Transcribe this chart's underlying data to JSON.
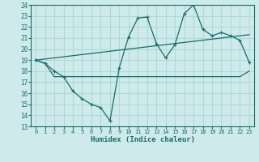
{
  "xlabel": "Humidex (Indice chaleur)",
  "xlim": [
    -0.5,
    23.5
  ],
  "ylim": [
    13,
    24
  ],
  "yticks": [
    13,
    14,
    15,
    16,
    17,
    18,
    19,
    20,
    21,
    22,
    23,
    24
  ],
  "xticks": [
    0,
    1,
    2,
    3,
    4,
    5,
    6,
    7,
    8,
    9,
    10,
    11,
    12,
    13,
    14,
    15,
    16,
    17,
    18,
    19,
    20,
    21,
    22,
    23
  ],
  "bg_color": "#ceeaea",
  "line_color": "#1a6b6b",
  "grid_color": "#b0d8d8",
  "line1_x": [
    0,
    1,
    2,
    3,
    4,
    5,
    6,
    7,
    8,
    9,
    10,
    11,
    12,
    13,
    14,
    15,
    16,
    17,
    18,
    19,
    20,
    21,
    22,
    23
  ],
  "line1_y": [
    19.0,
    18.7,
    18.0,
    17.5,
    16.2,
    15.5,
    15.0,
    14.7,
    13.5,
    18.3,
    21.1,
    22.8,
    22.9,
    20.5,
    19.2,
    20.4,
    23.2,
    24.0,
    21.8,
    21.2,
    21.5,
    21.2,
    20.8,
    18.8
  ],
  "line2_x": [
    0,
    23
  ],
  "line2_y": [
    19.0,
    21.3
  ],
  "line3_x": [
    0,
    1,
    2,
    8,
    9,
    10,
    11,
    12,
    13,
    14,
    15,
    16,
    17,
    18,
    19,
    20,
    21,
    22,
    23
  ],
  "line3_y": [
    19.0,
    18.7,
    17.5,
    17.5,
    17.5,
    17.5,
    17.5,
    17.5,
    17.5,
    17.5,
    17.5,
    17.5,
    17.5,
    17.5,
    17.5,
    17.5,
    17.5,
    17.5,
    18.0
  ]
}
